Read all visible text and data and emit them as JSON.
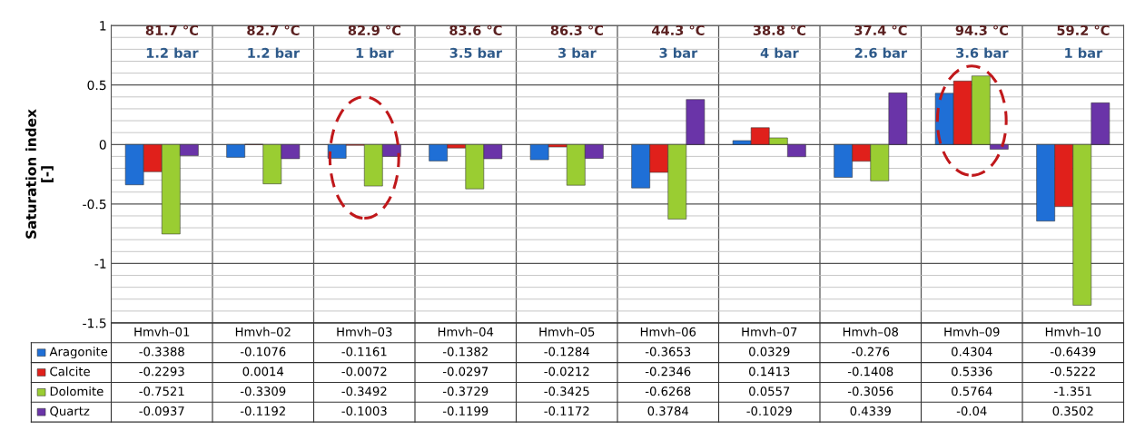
{
  "chart_data": {
    "type": "bar",
    "ylabel": "Saturation index\n[-]",
    "categories": [
      "Hmvh–01",
      "Hmvh–02",
      "Hmvh–03",
      "Hmvh–04",
      "Hmvh–05",
      "Hmvh–06",
      "Hmvh–07",
      "Hmvh–08",
      "Hmvh–09",
      "Hmvh–10"
    ],
    "series": [
      {
        "name": "Aragonite",
        "color": "#1f6fd6",
        "values": [
          -0.3388,
          -0.1076,
          -0.1161,
          -0.1382,
          -0.1284,
          -0.3653,
          0.0329,
          -0.276,
          0.4304,
          -0.6439
        ]
      },
      {
        "name": "Calcite",
        "color": "#e0201b",
        "values": [
          -0.2293,
          0.0014,
          -0.0072,
          -0.0297,
          -0.0212,
          -0.2346,
          0.1413,
          -0.1408,
          0.5336,
          -0.5222
        ]
      },
      {
        "name": "Dolomite",
        "color": "#9acd32",
        "values": [
          -0.7521,
          -0.3309,
          -0.3492,
          -0.3729,
          -0.3425,
          -0.6268,
          0.0557,
          -0.3056,
          0.5764,
          -1.351
        ]
      },
      {
        "name": "Quartz",
        "color": "#6a34a8",
        "values": [
          -0.0937,
          -0.1192,
          -0.1003,
          -0.1199,
          -0.1172,
          0.3784,
          -0.1029,
          0.4339,
          -0.04,
          0.3502
        ]
      }
    ],
    "ylim": [
      -1.5,
      1
    ],
    "yticks": [
      -1.5,
      -1,
      -0.5,
      0,
      0.5,
      1
    ],
    "grid": "y",
    "legend": "bottom",
    "data_labels": true,
    "annotations": [
      "81.7 °C",
      "82.7 °C",
      "82.9 °C",
      "83.6 °C",
      "86.3 °C",
      "44.3 °C",
      "38.8 °C",
      "37.4 °C",
      "94.3 °C",
      "59.2 °C",
      "1.2 bar",
      "1.2 bar",
      "1 bar",
      "3.5 bar",
      "3 bar",
      "3 bar",
      "4 bar",
      "2.6 bar",
      "3.6 bar",
      "1 bar"
    ]
  }
}
